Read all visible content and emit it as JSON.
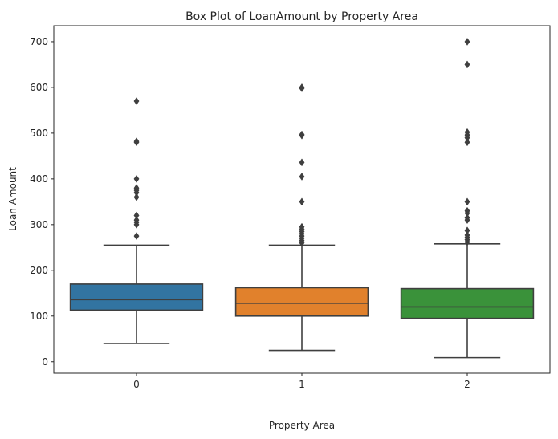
{
  "chart_data": {
    "type": "box",
    "title": "Box Plot of LoanAmount by Property Area",
    "xlabel": "Property Area",
    "ylabel": "Loan Amount",
    "categories": [
      "0",
      "1",
      "2"
    ],
    "ylim": [
      -25,
      735
    ],
    "yticks": [
      0,
      100,
      200,
      300,
      400,
      500,
      600,
      700
    ],
    "grid": false,
    "series": [
      {
        "category": "0",
        "color": "#3274a1",
        "whisker_low": 40,
        "q1": 113,
        "median": 136,
        "q3": 170,
        "whisker_high": 255,
        "outliers": [
          275,
          300,
          305,
          310,
          320,
          360,
          370,
          375,
          380,
          400,
          480,
          482,
          570
        ]
      },
      {
        "category": "1",
        "color": "#e1812c",
        "whisker_low": 25,
        "q1": 100,
        "median": 128,
        "q3": 162,
        "whisker_high": 255,
        "outliers": [
          260,
          265,
          270,
          275,
          280,
          285,
          290,
          295,
          350,
          405,
          436,
          495,
          497,
          598,
          600
        ]
      },
      {
        "category": "2",
        "color": "#3a923a",
        "whisker_low": 9,
        "q1": 95,
        "median": 120,
        "q3": 160,
        "whisker_high": 258,
        "outliers": [
          262,
          267,
          272,
          277,
          287,
          310,
          315,
          325,
          330,
          350,
          480,
          490,
          496,
          502,
          650,
          700
        ]
      }
    ]
  }
}
